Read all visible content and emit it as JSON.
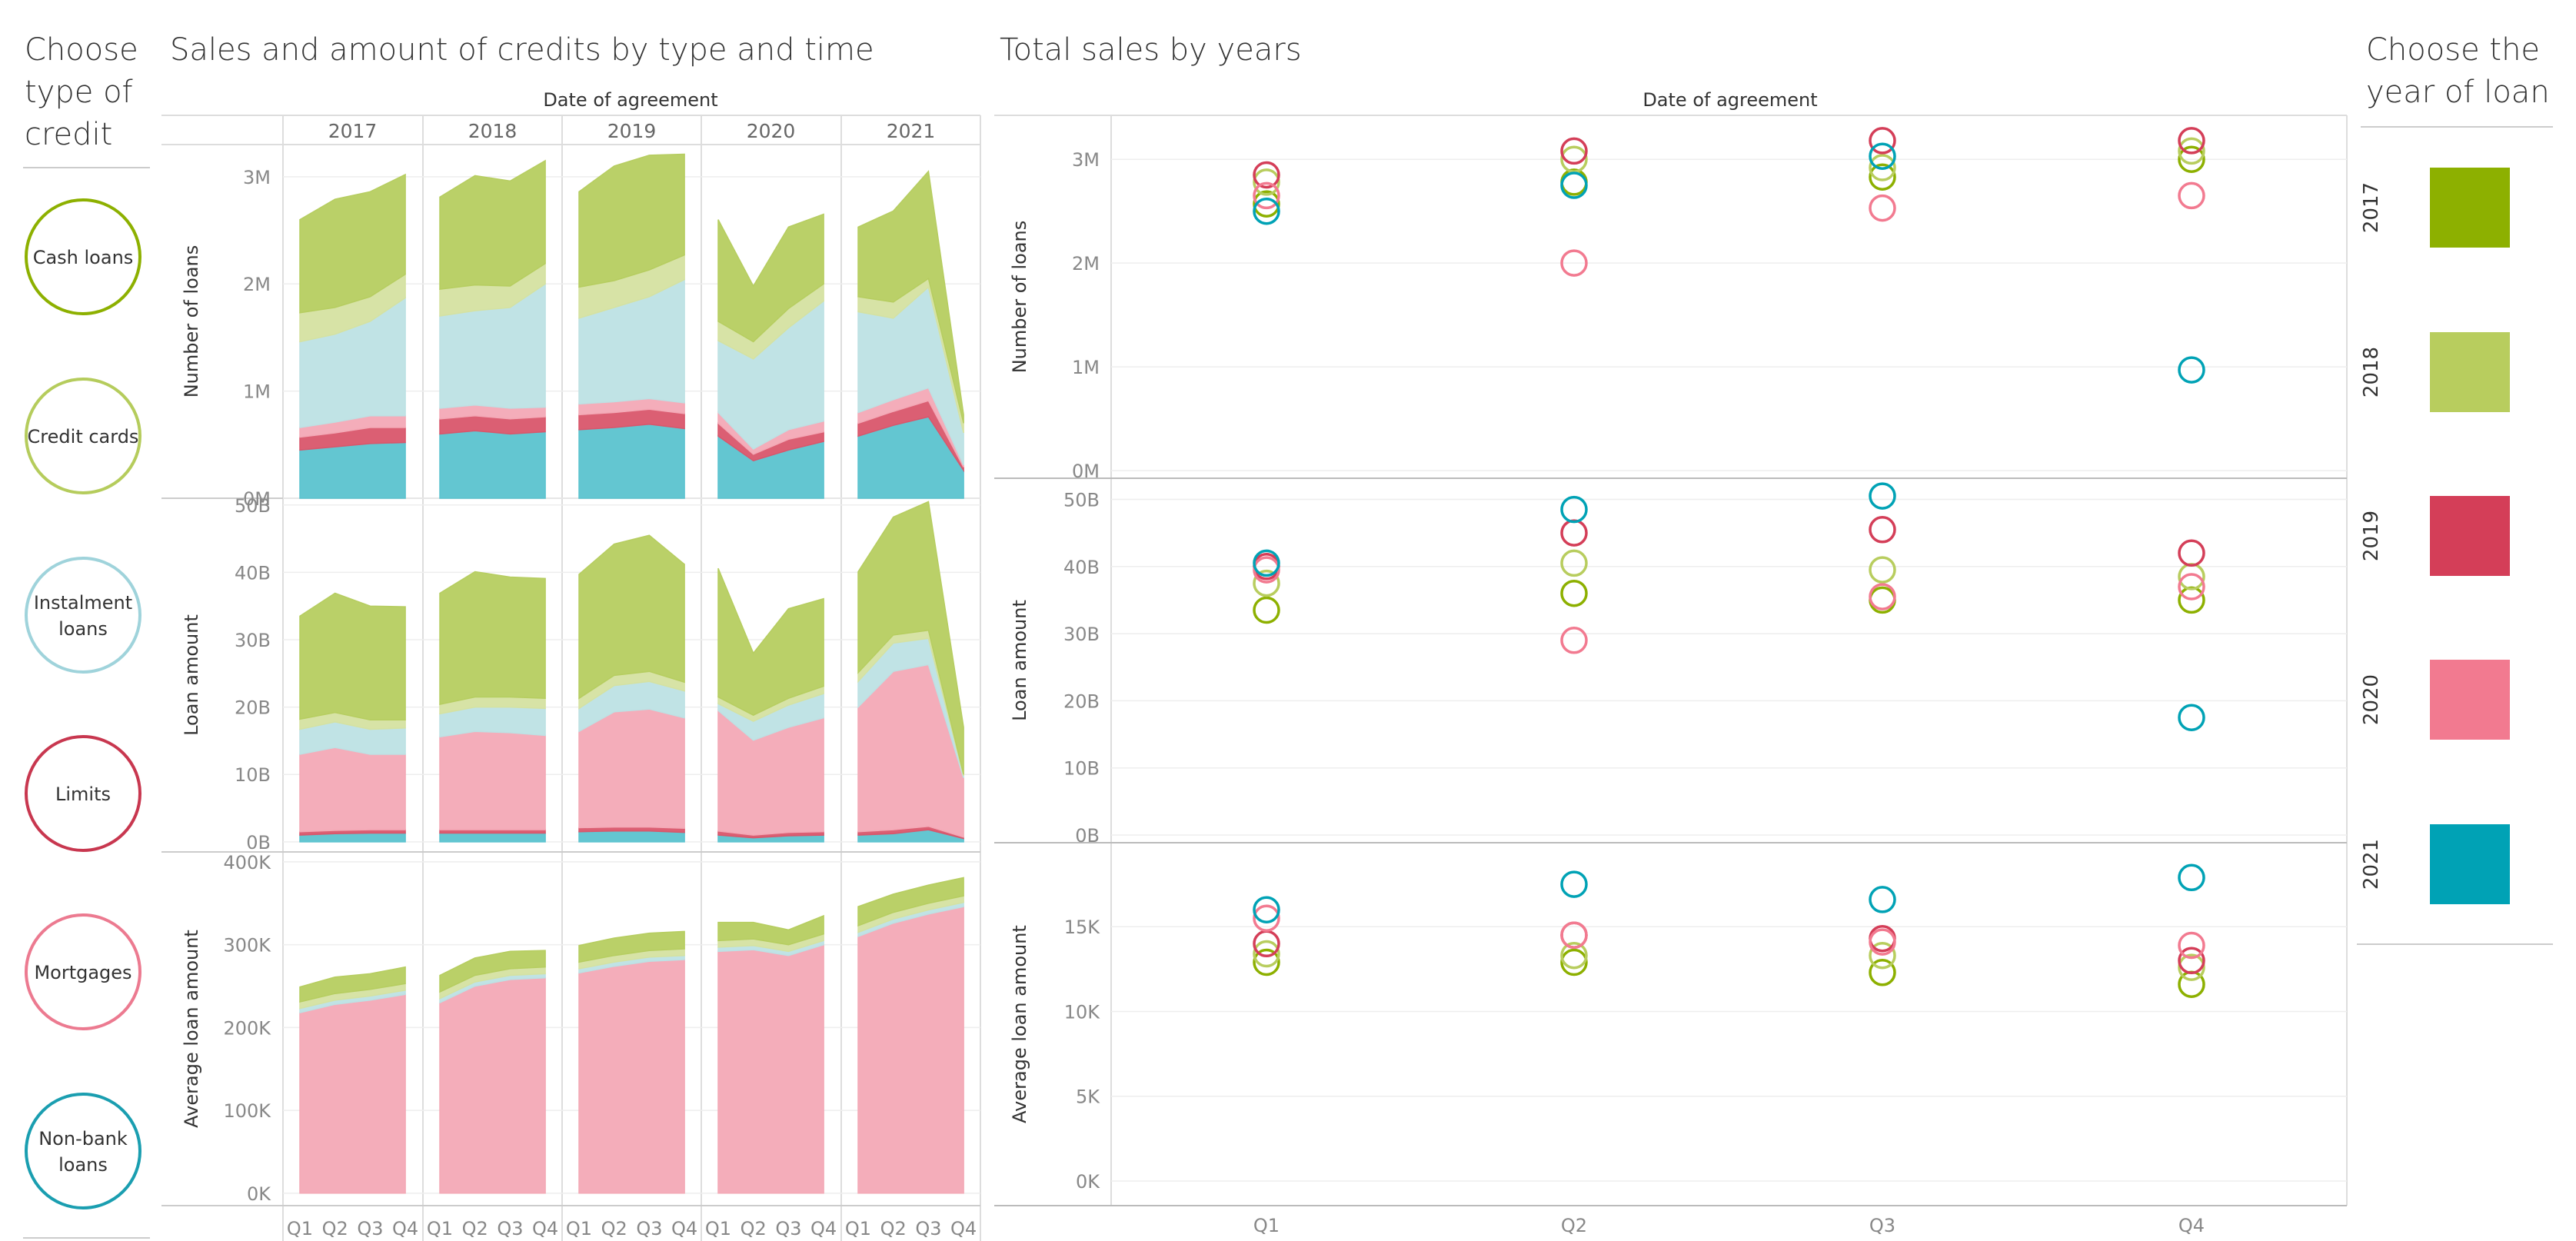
{
  "left_filter": {
    "title_lines": [
      "Choose",
      "type of",
      "credit"
    ],
    "items": [
      {
        "label_lines": [
          "Cash loans"
        ],
        "color": "#8db000"
      },
      {
        "label_lines": [
          "Credit cards"
        ],
        "color": "#b5cc5c"
      },
      {
        "label_lines": [
          "Instalment",
          "loans"
        ],
        "color": "#9fd3db"
      },
      {
        "label_lines": [
          "Limits"
        ],
        "color": "#c8374f"
      },
      {
        "label_lines": [
          "Mortgages"
        ],
        "color": "#ec7a90"
      },
      {
        "label_lines": [
          "Non-bank",
          "loans"
        ],
        "color": "#1a9eb0"
      }
    ]
  },
  "right_legend": {
    "title_lines": [
      "Choose the",
      "year of loan"
    ],
    "items": [
      {
        "label": "2017",
        "color": "#8db000"
      },
      {
        "label": "2018",
        "color": "#b8cd5e"
      },
      {
        "label": "2019",
        "color": "#d43e58"
      },
      {
        "label": "2020",
        "color": "#f27a90"
      },
      {
        "label": "2021",
        "color": "#00a2b5"
      }
    ]
  },
  "chart_data": [
    {
      "type": "area",
      "title": "Sales and amount of credits by type and time",
      "column_header": "Date of agreement",
      "years": [
        "2017",
        "2018",
        "2019",
        "2020",
        "2021"
      ],
      "quarters": [
        "Q1",
        "Q2",
        "Q3",
        "Q4"
      ],
      "stack_order": [
        "Non-bank loans",
        "Limits",
        "Mortgages",
        "Instalment loans",
        "Credit cards",
        "Cash loans"
      ],
      "series_colors": {
        "Non-bank loans": "#5bc3cf",
        "Limits": "#d9566b",
        "Mortgages": "#f3a9b6",
        "Instalment loans": "#bde1e4",
        "Credit cards": "#d5e2a1",
        "Cash loans": "#b6cd60"
      },
      "rows": [
        {
          "ylabel": "Number of loans",
          "ylim": [
            0,
            3300000
          ],
          "ticks": [
            {
              "v": 0,
              "t": "0M"
            },
            {
              "v": 1000000,
              "t": "1M"
            },
            {
              "v": 2000000,
              "t": "2M"
            },
            {
              "v": 3000000,
              "t": "3M"
            }
          ],
          "series": [
            {
              "name": "Non-bank loans",
              "values": [
                450000,
                480000,
                510000,
                520000,
                600000,
                630000,
                600000,
                620000,
                640000,
                660000,
                690000,
                650000,
                580000,
                350000,
                450000,
                530000,
                580000,
                680000,
                760000,
                260000
              ]
            },
            {
              "name": "Limits",
              "values": [
                120000,
                130000,
                150000,
                140000,
                140000,
                140000,
                140000,
                140000,
                140000,
                140000,
                140000,
                140000,
                120000,
                60000,
                100000,
                90000,
                120000,
                130000,
                150000,
                30000
              ]
            },
            {
              "name": "Mortgages",
              "values": [
                90000,
                100000,
                110000,
                110000,
                100000,
                100000,
                100000,
                90000,
                100000,
                100000,
                100000,
                100000,
                100000,
                50000,
                90000,
                100000,
                100000,
                110000,
                120000,
                20000
              ]
            },
            {
              "name": "Instalment loans",
              "values": [
                800000,
                820000,
                880000,
                1100000,
                860000,
                880000,
                940000,
                1150000,
                800000,
                880000,
                950000,
                1150000,
                670000,
                840000,
                950000,
                1120000,
                940000,
                760000,
                940000,
                300000
              ]
            },
            {
              "name": "Credit cards",
              "values": [
                270000,
                250000,
                230000,
                220000,
                250000,
                240000,
                200000,
                190000,
                290000,
                250000,
                250000,
                230000,
                180000,
                160000,
                180000,
                160000,
                140000,
                150000,
                80000,
                90000
              ]
            },
            {
              "name": "Cash loans",
              "values": [
                870000,
                1010000,
                980000,
                930000,
                860000,
                1020000,
                980000,
                960000,
                890000,
                1070000,
                1070000,
                940000,
                950000,
                520000,
                760000,
                650000,
                650000,
                850000,
                1000000,
                80000
              ]
            }
          ]
        },
        {
          "ylabel": "Loan amount",
          "ylim": [
            -1500000000,
            51000000000
          ],
          "ticks": [
            {
              "v": 0,
              "t": "0B"
            },
            {
              "v": 10000000000,
              "t": "10B"
            },
            {
              "v": 20000000000,
              "t": "20B"
            },
            {
              "v": 30000000000,
              "t": "30B"
            },
            {
              "v": 40000000000,
              "t": "40B"
            },
            {
              "v": 50000000000,
              "t": "50B"
            }
          ],
          "series": [
            {
              "name": "Non-bank loans",
              "values": [
                1000000000,
                1200000000,
                1300000000,
                1300000000,
                1300000000,
                1300000000,
                1300000000,
                1300000000,
                1500000000,
                1600000000,
                1600000000,
                1400000000,
                1000000000,
                600000000,
                900000000,
                1000000000,
                1000000000,
                1200000000,
                1800000000,
                500000000
              ]
            },
            {
              "name": "Limits",
              "values": [
                500000000,
                500000000,
                500000000,
                500000000,
                500000000,
                500000000,
                500000000,
                500000000,
                600000000,
                600000000,
                600000000,
                600000000,
                600000000,
                400000000,
                500000000,
                500000000,
                500000000,
                600000000,
                500000000,
                200000000
              ]
            },
            {
              "name": "Mortgages",
              "values": [
                11500000000,
                12300000000,
                11200000000,
                11200000000,
                13800000000,
                14600000000,
                14400000000,
                14000000000,
                14300000000,
                17100000000,
                17500000000,
                16400000000,
                17900000000,
                14100000000,
                15600000000,
                16900000000,
                18500000000,
                23500000000,
                24000000000,
                8800000000
              ]
            },
            {
              "name": "Instalment loans",
              "values": [
                3700000000,
                3800000000,
                3700000000,
                3900000000,
                3400000000,
                3600000000,
                3800000000,
                4000000000,
                3400000000,
                3900000000,
                4100000000,
                4000000000,
                1000000000,
                2800000000,
                3300000000,
                3600000000,
                3800000000,
                4200000000,
                3900000000,
                300000000
              ]
            },
            {
              "name": "Credit cards",
              "values": [
                1500000000,
                1400000000,
                1400000000,
                1200000000,
                1400000000,
                1500000000,
                1500000000,
                1500000000,
                1500000000,
                1500000000,
                1500000000,
                1300000000,
                1000000000,
                900000000,
                1000000000,
                1100000000,
                1300000000,
                1200000000,
                1200000000,
                200000000
              ]
            },
            {
              "name": "Cash loans",
              "values": [
                15300000000,
                17700000000,
                16900000000,
                16800000000,
                16500000000,
                18600000000,
                17800000000,
                17800000000,
                18400000000,
                19500000000,
                20200000000,
                17500000000,
                19100000000,
                9200000000,
                13300000000,
                13000000000,
                15000000000,
                17500000000,
                19100000000,
                7000000000
              ]
            }
          ]
        },
        {
          "ylabel": "Average loan amount",
          "ylim": [
            -15000,
            412000
          ],
          "ticks": [
            {
              "v": 0,
              "t": "0K"
            },
            {
              "v": 100000,
              "t": "100K"
            },
            {
              "v": 200000,
              "t": "200K"
            },
            {
              "v": 300000,
              "t": "300K"
            },
            {
              "v": 400000,
              "t": "400K"
            }
          ],
          "series": [
            {
              "name": "Non-bank loans",
              "values": [
                0,
                0,
                0,
                0,
                0,
                0,
                0,
                0,
                0,
                0,
                0,
                0,
                0,
                0,
                0,
                0,
                0,
                0,
                0,
                0
              ]
            },
            {
              "name": "Limits",
              "values": [
                0,
                0,
                0,
                0,
                0,
                0,
                0,
                0,
                0,
                0,
                0,
                0,
                0,
                0,
                0,
                0,
                0,
                0,
                0,
                0
              ]
            },
            {
              "name": "Mortgages",
              "values": [
                218000,
                228000,
                233000,
                240000,
                230000,
                250000,
                258000,
                260000,
                266000,
                274000,
                280000,
                282000,
                292000,
                294000,
                287000,
                300000,
                310000,
                326000,
                337000,
                346000
              ]
            },
            {
              "name": "Instalment loans",
              "values": [
                5000,
                5000,
                5000,
                5000,
                5000,
                5000,
                5000,
                5000,
                5000,
                5000,
                5000,
                5000,
                5000,
                5000,
                5000,
                5000,
                5000,
                5000,
                5000,
                5000
              ]
            },
            {
              "name": "Credit cards",
              "values": [
                8000,
                8000,
                8000,
                8000,
                8000,
                8000,
                8000,
                8000,
                8000,
                8000,
                8000,
                8000,
                8000,
                8000,
                8000,
                8000,
                8000,
                8000,
                8000,
                8000
              ]
            },
            {
              "name": "Cash loans",
              "values": [
                18000,
                20000,
                19000,
                20000,
                20000,
                21000,
                21000,
                20000,
                20000,
                21000,
                21000,
                21000,
                22000,
                20000,
                18000,
                22000,
                23000,
                22000,
                22000,
                22000
              ]
            }
          ]
        }
      ]
    },
    {
      "type": "scatter",
      "title": "Total sales by years",
      "column_header": "Date of agreement",
      "categories": [
        "Q1",
        "Q2",
        "Q3",
        "Q4"
      ],
      "years": [
        "2017",
        "2018",
        "2019",
        "2020",
        "2021"
      ],
      "rows": [
        {
          "ylabel": "Number of loans",
          "ylim": [
            0,
            3350000
          ],
          "ticks": [
            {
              "v": 0,
              "t": "0M"
            },
            {
              "v": 1000000,
              "t": "1M"
            },
            {
              "v": 2000000,
              "t": "2M"
            },
            {
              "v": 3000000,
              "t": "3M"
            }
          ],
          "series": [
            {
              "name": "2017",
              "values": [
                2570000,
                2780000,
                2830000,
                3000000
              ]
            },
            {
              "name": "2018",
              "values": [
                2780000,
                3000000,
                2920000,
                3080000
              ]
            },
            {
              "name": "2019",
              "values": [
                2850000,
                3080000,
                3180000,
                3180000
              ]
            },
            {
              "name": "2020",
              "values": [
                2650000,
                2000000,
                2530000,
                2650000
              ]
            },
            {
              "name": "2021",
              "values": [
                2500000,
                2750000,
                3030000,
                970000
              ]
            }
          ]
        },
        {
          "ylabel": "Loan amount",
          "ylim": [
            0,
            52000000000
          ],
          "ticks": [
            {
              "v": 0,
              "t": "0B"
            },
            {
              "v": 10000000000,
              "t": "10B"
            },
            {
              "v": 20000000000,
              "t": "20B"
            },
            {
              "v": 30000000000,
              "t": "30B"
            },
            {
              "v": 40000000000,
              "t": "40B"
            },
            {
              "v": 50000000000,
              "t": "50B"
            }
          ],
          "series": [
            {
              "name": "2017",
              "values": [
                33500000000,
                36000000000,
                35000000000,
                35000000000
              ]
            },
            {
              "name": "2018",
              "values": [
                37500000000,
                40500000000,
                39500000000,
                38500000000
              ]
            },
            {
              "name": "2019",
              "values": [
                40000000000,
                45000000000,
                45500000000,
                42000000000
              ]
            },
            {
              "name": "2020",
              "values": [
                39500000000,
                29000000000,
                35500000000,
                37000000000
              ]
            },
            {
              "name": "2021",
              "values": [
                40500000000,
                48500000000,
                50500000000,
                17500000000
              ]
            }
          ]
        },
        {
          "ylabel": "Average loan amount",
          "ylim": [
            -1000,
            19500
          ],
          "ticks": [
            {
              "v": 0,
              "t": "0K"
            },
            {
              "v": 5000,
              "t": "5K"
            },
            {
              "v": 10000,
              "t": "10K"
            },
            {
              "v": 15000,
              "t": "15K"
            }
          ],
          "series": [
            {
              "name": "2017",
              "values": [
                12900,
                12900,
                12300,
                11600
              ]
            },
            {
              "name": "2018",
              "values": [
                13400,
                13300,
                13300,
                12600
              ]
            },
            {
              "name": "2019",
              "values": [
                14000,
                14500,
                14300,
                13000
              ]
            },
            {
              "name": "2020",
              "values": [
                15500,
                14500,
                14100,
                13900
              ]
            },
            {
              "name": "2021",
              "values": [
                16000,
                17500,
                16600,
                17900
              ]
            }
          ]
        }
      ]
    }
  ]
}
